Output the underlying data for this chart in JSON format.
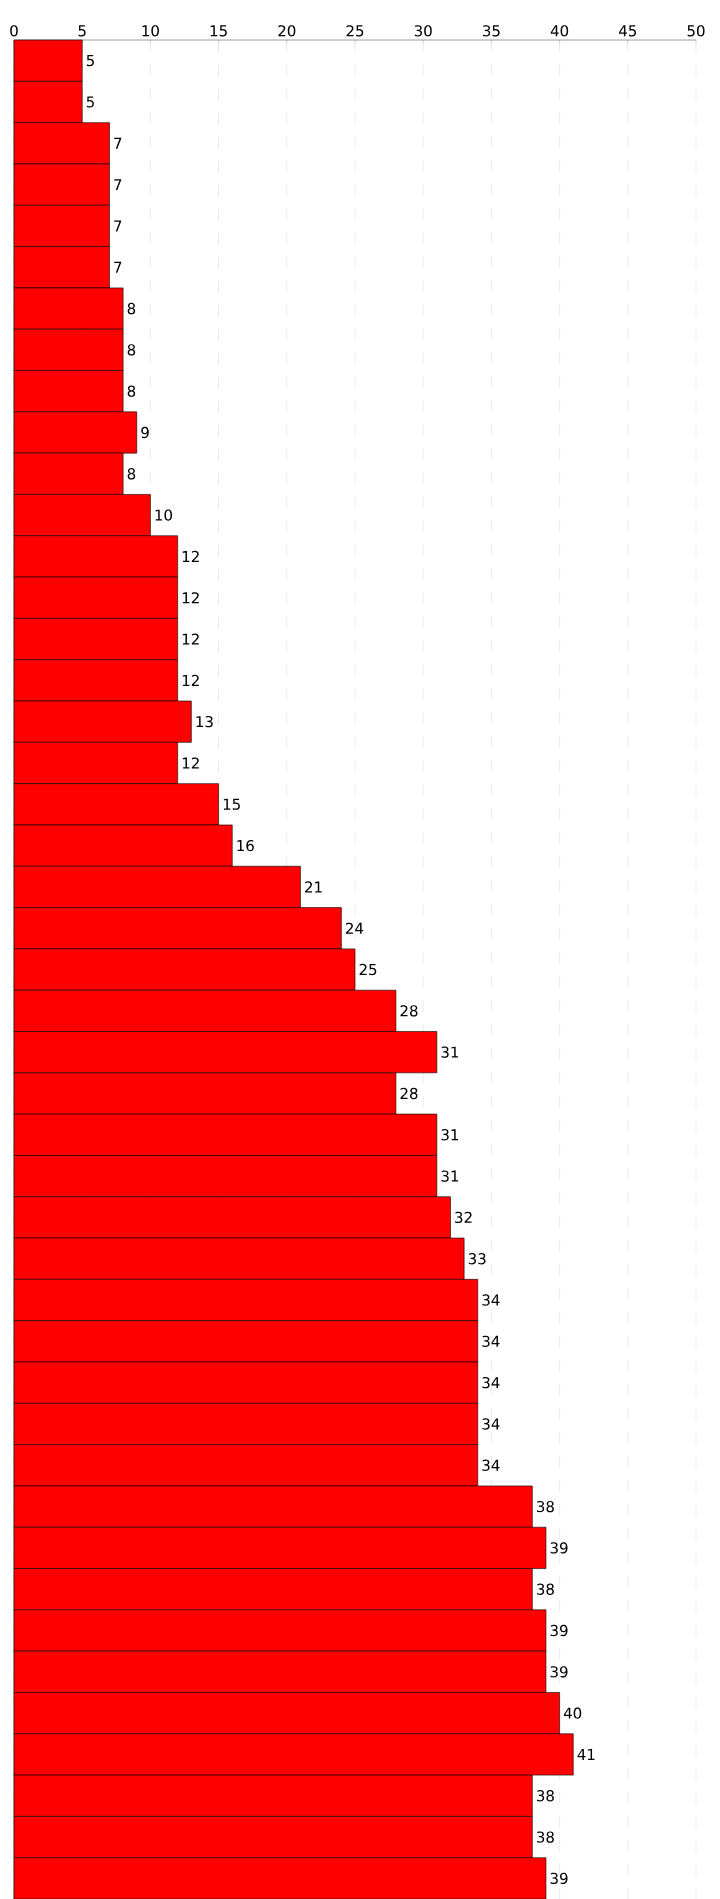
{
  "chart_data": {
    "type": "bar",
    "orientation": "horizontal",
    "categories": [
      null,
      null,
      null,
      null,
      null,
      null,
      null,
      null,
      null,
      null,
      null,
      null,
      null,
      null,
      null,
      null,
      null,
      null,
      null,
      null,
      null,
      null,
      null,
      null,
      null,
      null,
      null,
      null,
      null,
      null,
      null,
      null,
      null,
      null,
      null,
      null,
      null,
      null,
      null,
      null,
      null,
      null,
      null,
      null,
      null
    ],
    "values": [
      5,
      5,
      7,
      7,
      7,
      7,
      8,
      8,
      8,
      9,
      8,
      10,
      12,
      12,
      12,
      12,
      13,
      12,
      15,
      16,
      21,
      24,
      25,
      28,
      31,
      28,
      31,
      31,
      32,
      33,
      34,
      34,
      34,
      34,
      34,
      38,
      39,
      38,
      39,
      39,
      40,
      41,
      38,
      38,
      39
    ],
    "color": "#ff0000",
    "xlim": [
      0,
      50
    ],
    "xticks": [
      0,
      5,
      10,
      15,
      20,
      25,
      30,
      35,
      40,
      45,
      50
    ],
    "grid": "x",
    "data_labels": true
  }
}
